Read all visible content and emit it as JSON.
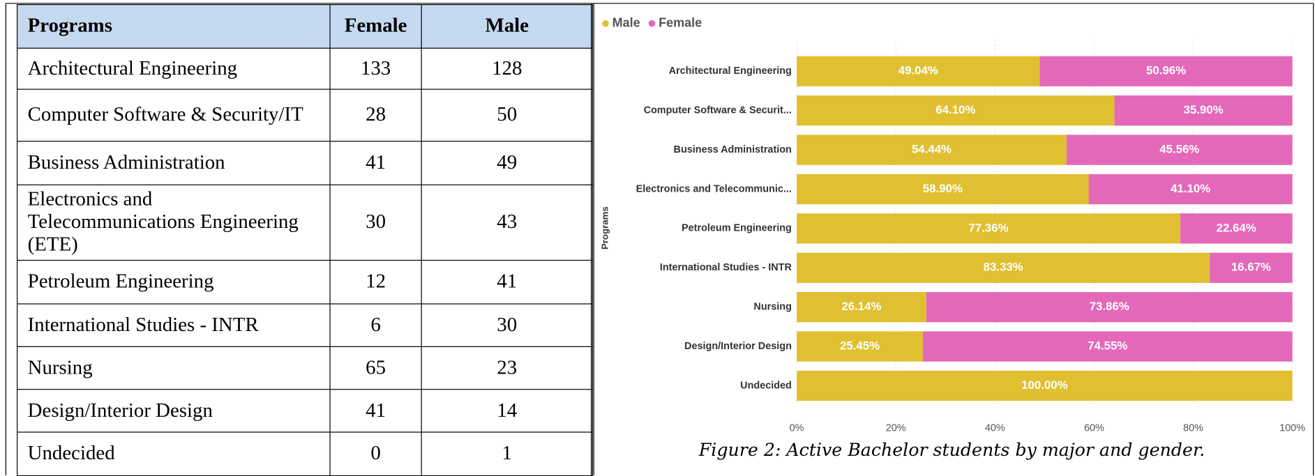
{
  "table": {
    "header": [
      "Programs",
      "Female",
      "Male"
    ],
    "rows": [
      [
        "Architectural Engineering",
        133,
        128
      ],
      [
        "Computer Software & Security/IT",
        28,
        50
      ],
      [
        "Business Administration",
        41,
        49
      ],
      [
        "Electronics and Telecommunications Engineering (ETE)",
        30,
        43
      ],
      [
        "Petroleum Engineering",
        12,
        41
      ],
      [
        "International Studies - INTR",
        6,
        30
      ],
      [
        "Nursing",
        65,
        23
      ],
      [
        "Design/Interior Design",
        41,
        14
      ],
      [
        "Undecided",
        0,
        1
      ]
    ]
  },
  "chart_data": {
    "type": "bar",
    "orientation": "horizontal",
    "stacked": true,
    "y_label": "Programs",
    "categories": [
      "Architectural Engineering",
      "Computer Software & Securit...",
      "Business Administration",
      "Electronics and Telecommunic...",
      "Petroleum Engineering",
      "International Studies - INTR",
      "Nursing",
      "Design/Interior Design",
      "Undecided"
    ],
    "series": [
      {
        "name": "Male",
        "color": "#e0c030",
        "values": [
          49.04,
          64.1,
          54.44,
          58.9,
          77.36,
          83.33,
          26.14,
          25.45,
          100
        ],
        "value_labels": [
          "49.04%",
          "64.10%",
          "54.44%",
          "58.90%",
          "77.36%",
          "83.33%",
          "26.14%",
          "25.45%",
          "100.00%"
        ]
      },
      {
        "name": "Female",
        "color": "#e468ba",
        "values": [
          50.96,
          35.9,
          45.56,
          41.1,
          22.64,
          16.67,
          73.86,
          74.55,
          0
        ],
        "value_labels": [
          "50.96%",
          "35.90%",
          "45.56%",
          "41.10%",
          "22.64%",
          "16.67%",
          "73.86%",
          "74.55%",
          null
        ]
      }
    ],
    "xlim": [
      0,
      100
    ],
    "xticks": [
      {
        "value": 0,
        "label": "0%"
      },
      {
        "value": 20,
        "label": "20%"
      },
      {
        "value": 40,
        "label": "40%"
      },
      {
        "value": 60,
        "label": "60%"
      },
      {
        "value": 80,
        "label": "80%"
      },
      {
        "value": 100,
        "label": "100%"
      }
    ],
    "legend": "top-left",
    "caption": "Figure 2: Active Bachelor students by major and gender."
  }
}
